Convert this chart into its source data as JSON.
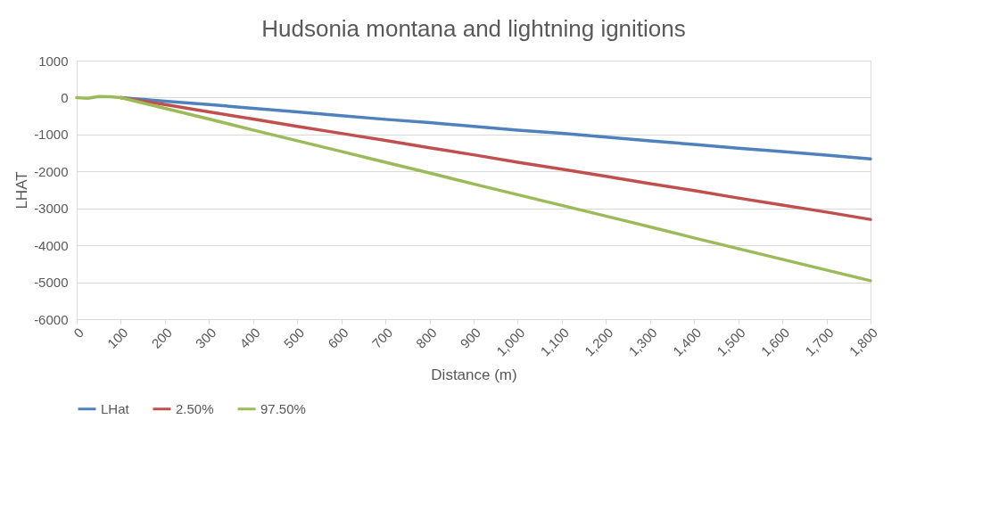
{
  "chart_data": {
    "type": "line",
    "title": "Hudsonia montana and lightning ignitions",
    "xlabel": "Distance (m)",
    "ylabel": "LHAT",
    "x": [
      0,
      25,
      50,
      75,
      100,
      200,
      300,
      400,
      500,
      600,
      700,
      800,
      900,
      1000,
      1100,
      1200,
      1300,
      1400,
      1500,
      1600,
      1700,
      1800
    ],
    "series": [
      {
        "name": "LHat",
        "color": "#4f81bd",
        "values": [
          null,
          null,
          null,
          null,
          0,
          -100,
          -190,
          -290,
          -390,
          -490,
          -590,
          -680,
          -780,
          -880,
          -970,
          -1070,
          -1170,
          -1270,
          -1370,
          -1460,
          -1560,
          -1660
        ]
      },
      {
        "name": "2.50%",
        "color": "#c0504d",
        "values": [
          null,
          null,
          null,
          null,
          0,
          -190,
          -390,
          -580,
          -780,
          -970,
          -1160,
          -1360,
          -1550,
          -1750,
          -1940,
          -2130,
          -2330,
          -2520,
          -2720,
          -2910,
          -3100,
          -3300
        ]
      },
      {
        "name": "97.50%",
        "color": "#9bbb59",
        "values": [
          0,
          -20,
          30,
          20,
          0,
          -290,
          -580,
          -880,
          -1170,
          -1460,
          -1750,
          -2040,
          -2340,
          -2630,
          -2920,
          -3210,
          -3500,
          -3800,
          -4090,
          -4380,
          -4670,
          -4960
        ]
      }
    ],
    "xlim": [
      0,
      1800
    ],
    "xticks": [
      0,
      100,
      200,
      300,
      400,
      500,
      600,
      700,
      800,
      900,
      {
        "value": 1000,
        "label": "1,000"
      },
      {
        "value": 1100,
        "label": "1,100"
      },
      {
        "value": 1200,
        "label": "1,200"
      },
      {
        "value": 1300,
        "label": "1,300"
      },
      {
        "value": 1400,
        "label": "1,400"
      },
      {
        "value": 1500,
        "label": "1,500"
      },
      {
        "value": 1600,
        "label": "1,600"
      },
      {
        "value": 1700,
        "label": "1,700"
      },
      {
        "value": 1800,
        "label": "1,800"
      }
    ],
    "ylim": [
      -6000,
      1000
    ],
    "yticks": [
      -6000,
      -5000,
      -4000,
      -3000,
      -2000,
      -1000,
      0,
      1000
    ],
    "grid": "y",
    "legend": "bottom",
    "marker": "none",
    "line_style": "solid"
  }
}
